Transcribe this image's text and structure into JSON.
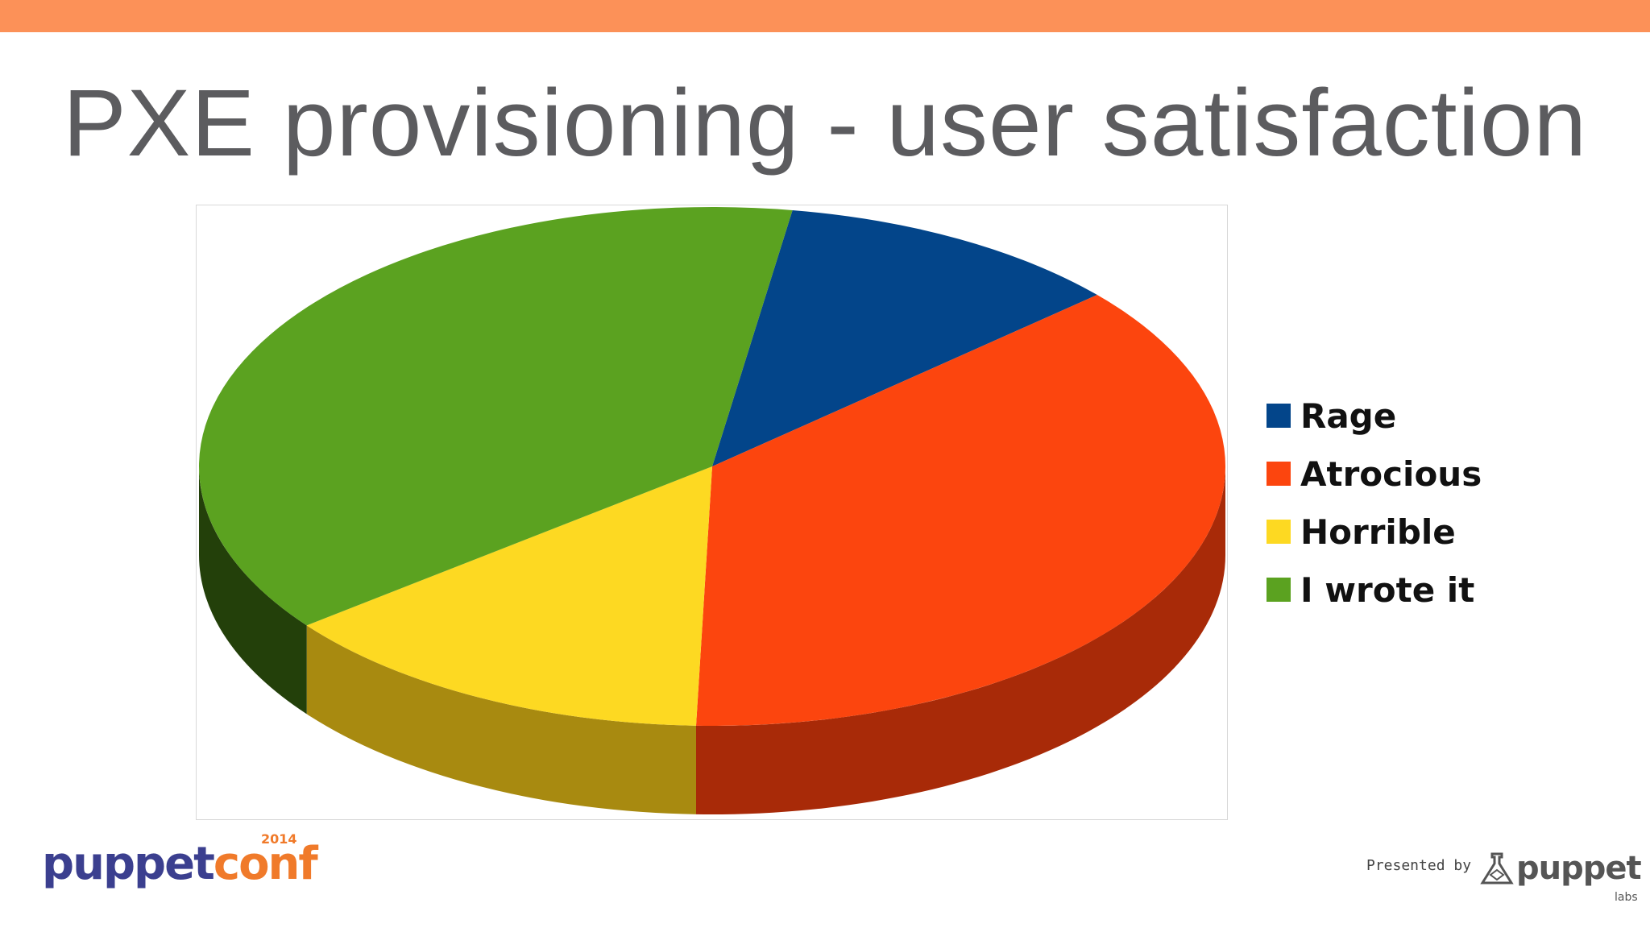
{
  "slide": {
    "title": "PXE provisioning - user satisfaction"
  },
  "colors": {
    "top_bar": "#fc9158",
    "title_text": "#5c5c5f"
  },
  "chart_data": {
    "type": "pie",
    "style": "3d",
    "title": "",
    "legend_position": "right",
    "series": [
      {
        "name": "Rage",
        "value": 11,
        "color": "#03458a",
        "side_color": "#022a55"
      },
      {
        "name": "Atrocious",
        "value": 37,
        "color": "#fc450e",
        "side_color": "#a82a08"
      },
      {
        "name": "Horrible",
        "value": 14,
        "color": "#fdd922",
        "side_color": "#a88a10"
      },
      {
        "name": "I wrote it",
        "value": 38,
        "color": "#5ba220",
        "side_color": "#23400a"
      }
    ]
  },
  "footer": {
    "left_logo_puppet": "puppet",
    "left_logo_conf": "conf",
    "left_logo_year": "2014",
    "presented_by": "Presented by",
    "right_logo_word": "puppet",
    "right_logo_sub": "labs"
  }
}
